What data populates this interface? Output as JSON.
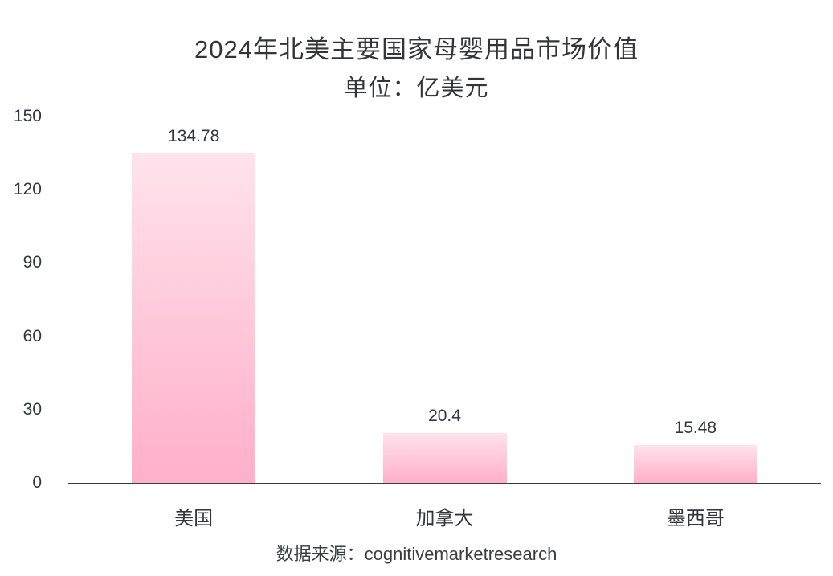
{
  "chart_data": {
    "type": "bar",
    "title": "2024年北美主要国家母婴用品市场价值",
    "subtitle": "单位：亿美元",
    "categories": [
      "美国",
      "加拿大",
      "墨西哥"
    ],
    "values": [
      134.78,
      20.4,
      15.48
    ],
    "value_labels": [
      "134.78",
      "20.4",
      "15.48"
    ],
    "ylim": [
      0,
      150
    ],
    "yticks": [
      0,
      30,
      60,
      90,
      120,
      150
    ],
    "grid": "off",
    "legend": "none",
    "source": "数据来源：cognitivemarketresearch",
    "colors": {
      "bar_gradient_top": "#ffe3ec",
      "bar_gradient_bottom": "#ffafc9",
      "axis": "#3a3c3e",
      "text": "#333538",
      "background": "#ffffff"
    }
  }
}
